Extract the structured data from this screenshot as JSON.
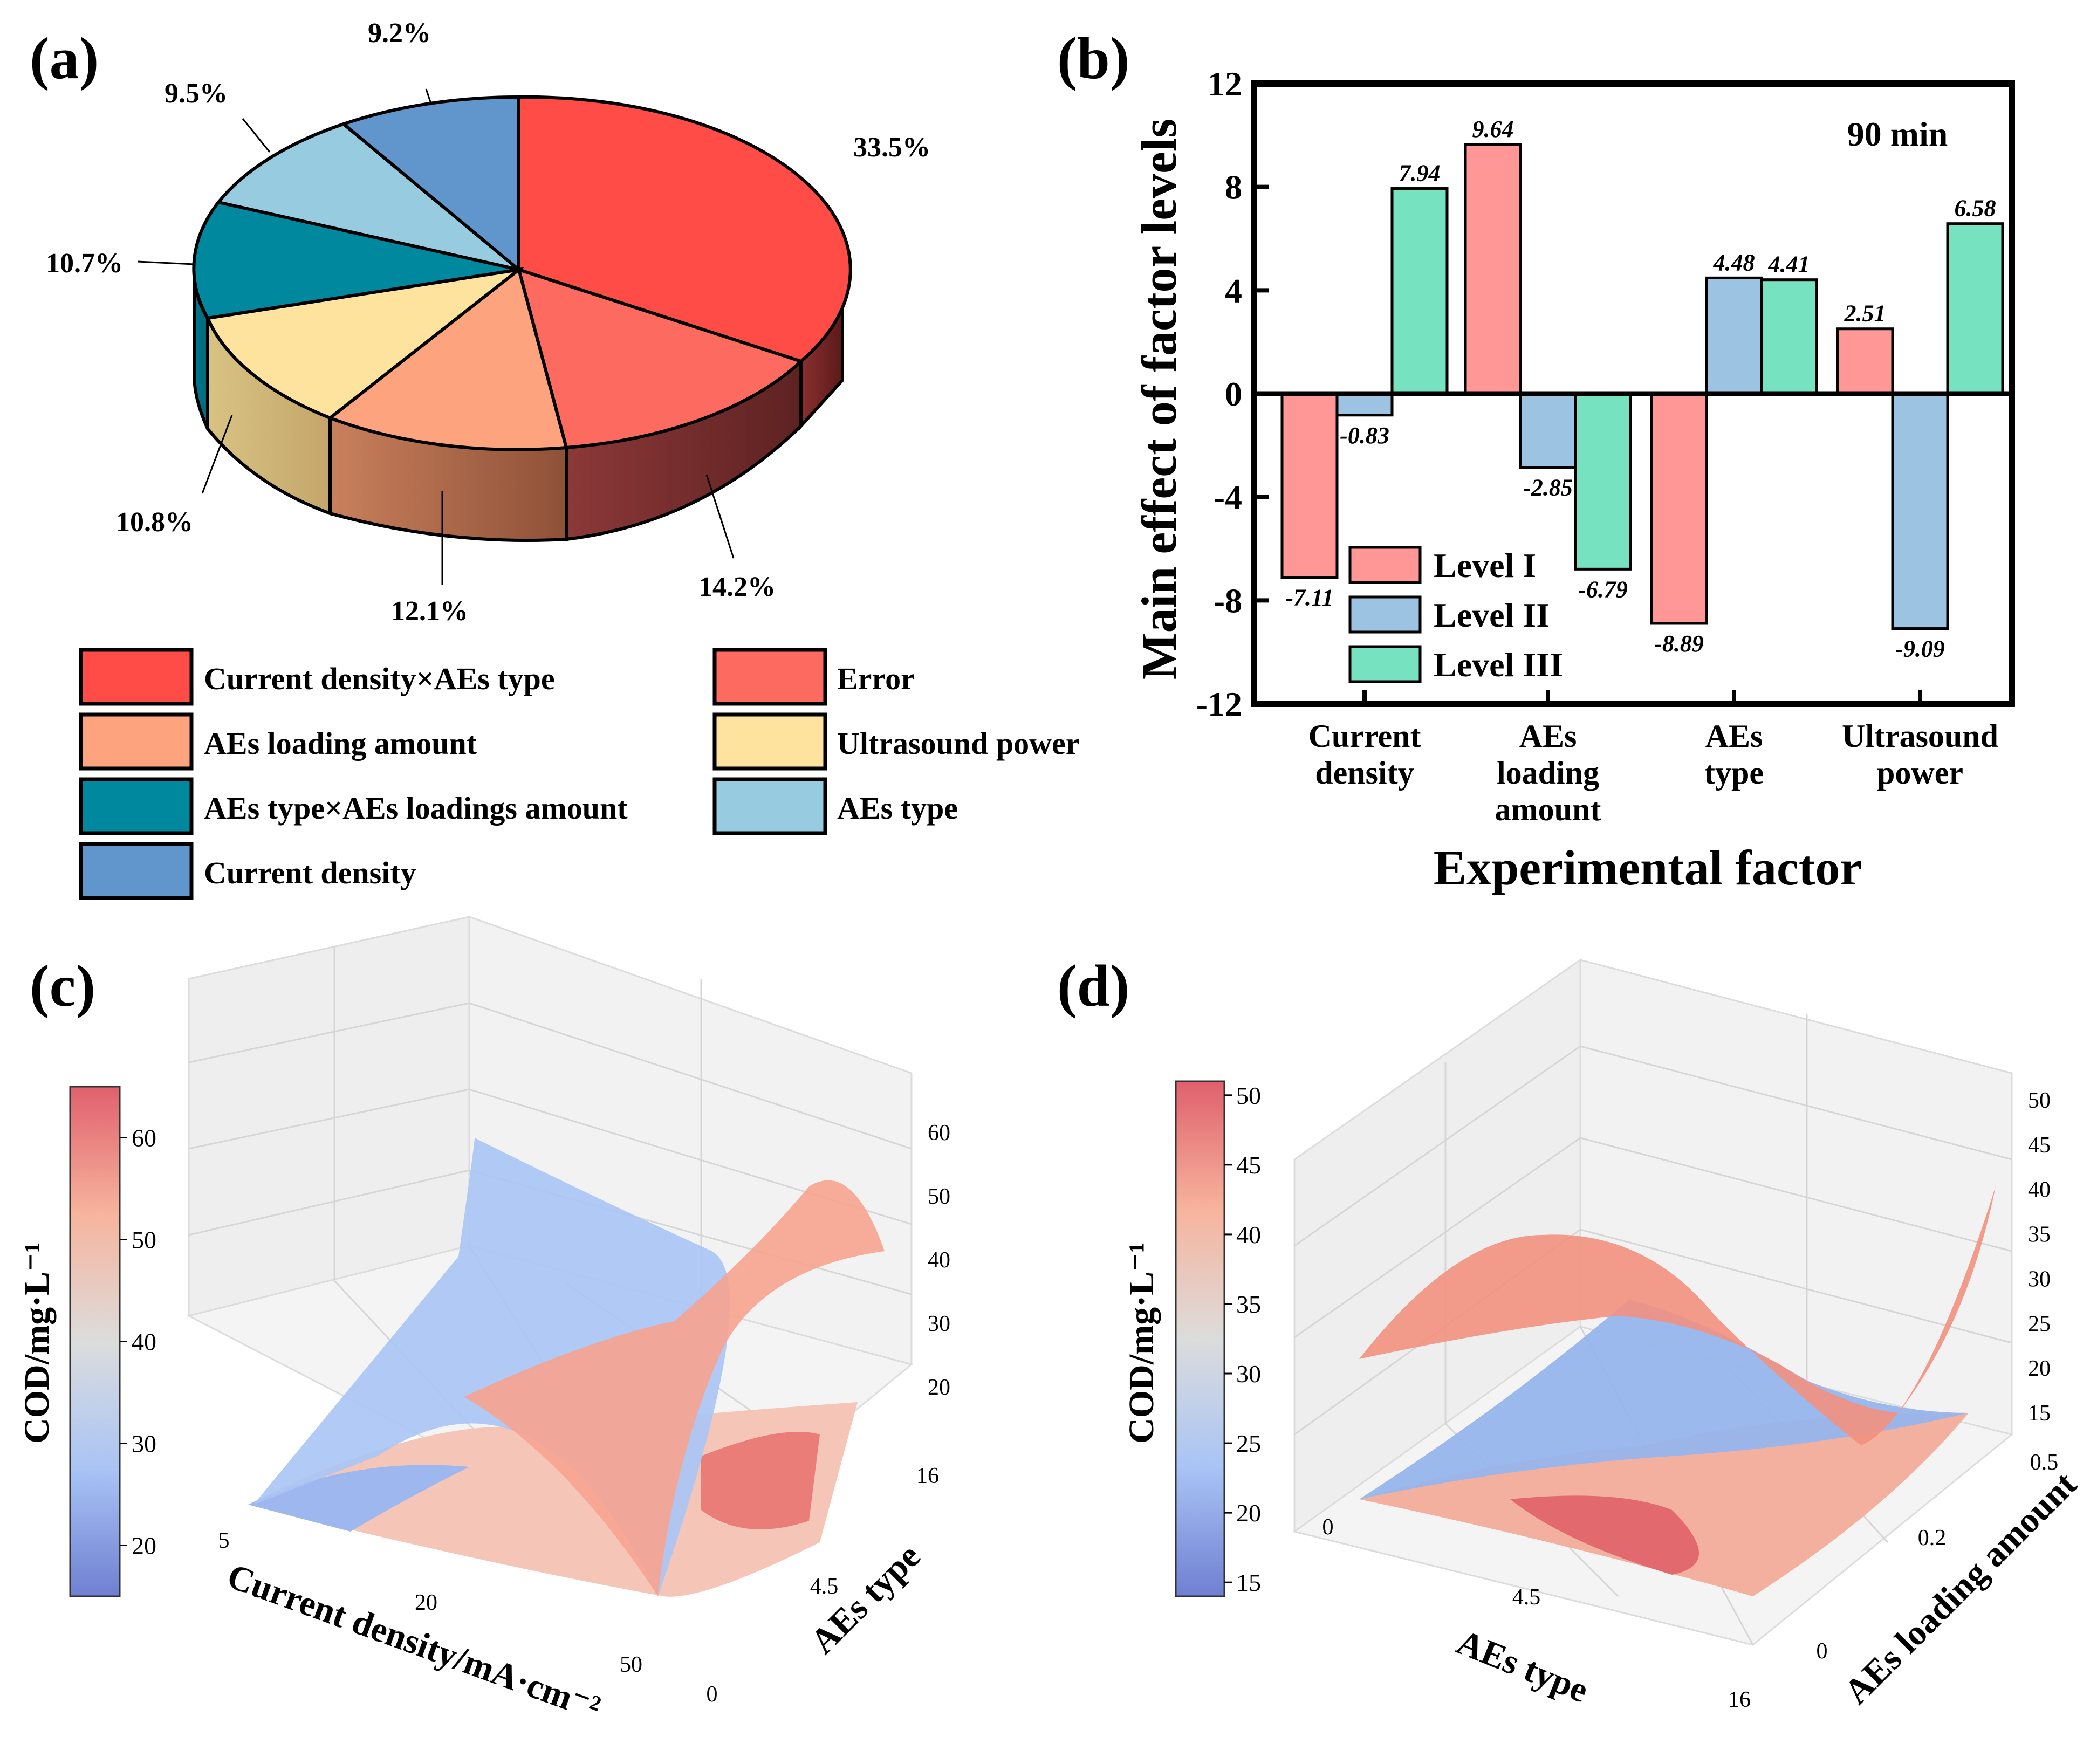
{
  "panels": {
    "a": "(a)",
    "b": "(b)",
    "c": "(c)",
    "d": "(d)"
  },
  "chart_data": [
    {
      "id": "a",
      "type": "pie",
      "slices": [
        {
          "label": "Current density×AEs type",
          "value": 33.5,
          "text": "33.5%",
          "color": "#ff4c47"
        },
        {
          "label": "Error",
          "value": 14.2,
          "text": "14.2%",
          "color": "#fd6a5f"
        },
        {
          "label": "AEs loading amount",
          "value": 12.1,
          "text": "12.1%",
          "color": "#fda47f"
        },
        {
          "label": "Ultrasound power",
          "value": 10.8,
          "text": "10.8%",
          "color": "#fde39e"
        },
        {
          "label": "AEs type×AEs loadings amount",
          "value": 10.7,
          "text": "10.7%",
          "color": "#00889f"
        },
        {
          "label": "AEs type",
          "value": 9.5,
          "text": "9.5%",
          "color": "#96cbe0"
        },
        {
          "label": "Current density",
          "value": 9.2,
          "text": "9.2%",
          "color": "#6196cd"
        }
      ],
      "legend_order": [
        "Current density×AEs type",
        "Error",
        "AEs loading amount",
        "Ultrasound power",
        "AEs type×AEs loadings amount",
        "AEs type",
        "Current density"
      ]
    },
    {
      "id": "b",
      "type": "bar",
      "annotation": "90 min",
      "ylabel": "Main effect of factor levels",
      "xlabel": "Experimental factor",
      "ylim": [
        -12,
        12
      ],
      "yticks": [
        "-12",
        "-8",
        "-4",
        "0",
        "4",
        "8",
        "12"
      ],
      "categories": [
        [
          "Current",
          "density"
        ],
        [
          "AEs",
          "loading",
          "amount"
        ],
        [
          "AEs",
          "type"
        ],
        [
          "Ultrasound",
          "power"
        ]
      ],
      "series": [
        {
          "name": "Level I",
          "color": "#fe9796",
          "values": [
            -7.11,
            9.64,
            -8.89,
            2.51
          ],
          "labels": [
            "-7.11",
            "9.64",
            "-8.89",
            "2.51"
          ]
        },
        {
          "name": "Level II",
          "color": "#9cc3e2",
          "values": [
            -0.83,
            -2.85,
            4.48,
            -9.09
          ],
          "labels": [
            "-0.83",
            "-2.85",
            "4.48",
            "-9.09"
          ]
        },
        {
          "name": "Level III",
          "color": "#76e2bf",
          "values": [
            7.94,
            -6.79,
            4.41,
            6.58
          ],
          "labels": [
            "7.94",
            "-6.79",
            "4.41",
            "6.58"
          ]
        }
      ]
    },
    {
      "id": "c",
      "type": "surface",
      "colorbar_label": "COD/mg·L⁻¹",
      "colorbar_range": [
        15,
        65
      ],
      "colorbar_ticks": [
        "20",
        "30",
        "40",
        "50",
        "60"
      ],
      "z_ticks": [
        "20",
        "30",
        "40",
        "50",
        "60"
      ],
      "x_label": "Current density/mA·cm⁻²",
      "x_ticks": [
        "5",
        "20",
        "50"
      ],
      "y_label": "AEs type",
      "y_ticks": [
        "0",
        "4.5",
        "16"
      ]
    },
    {
      "id": "d",
      "type": "surface",
      "colorbar_label": "COD/mg·L⁻¹",
      "colorbar_range": [
        14,
        51
      ],
      "colorbar_ticks": [
        "15",
        "20",
        "25",
        "30",
        "35",
        "40",
        "45",
        "50"
      ],
      "z_ticks": [
        "15",
        "20",
        "25",
        "30",
        "35",
        "40",
        "45",
        "50"
      ],
      "x_label": "AEs type",
      "x_ticks": [
        "0",
        "4.5",
        "16"
      ],
      "y_label": "AEs loading amount",
      "y_ticks": [
        "0",
        "0.2",
        "0.5"
      ]
    }
  ]
}
